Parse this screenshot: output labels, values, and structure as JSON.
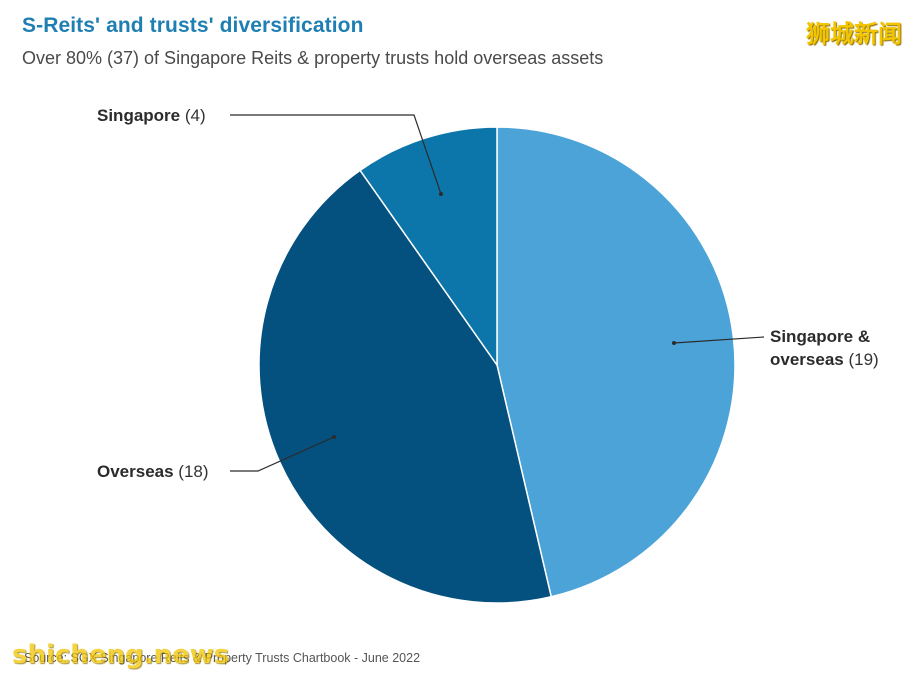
{
  "header": {
    "title": "S-Reits' and trusts' diversification",
    "subtitle": "Over 80% (37) of Singapore Reits & property trusts hold overseas assets"
  },
  "brand_watermark": "狮城新闻",
  "footer": {
    "source": "Source: SGX Singapore Reits & Property Trusts Chartbook - June 2022",
    "watermark": "shicheng.news"
  },
  "chart_data": {
    "type": "pie",
    "title": "S-Reits' and trusts' diversification",
    "subtitle": "Over 80% (37) of Singapore Reits & property trusts hold overseas assets",
    "slices": [
      {
        "label": "Singapore & overseas",
        "name_lines": [
          "Singapore &",
          "overseas"
        ],
        "value": 19,
        "value_text": "(19)",
        "color": "#4ba3d8"
      },
      {
        "label": "Overseas",
        "name_lines": [
          "Overseas"
        ],
        "value": 18,
        "value_text": "(18)",
        "color": "#04507f"
      },
      {
        "label": "Singapore",
        "name_lines": [
          "Singapore"
        ],
        "value": 4,
        "value_text": "(4)",
        "color": "#0c76aa"
      }
    ],
    "start_angle": "12 o'clock",
    "direction": "clockwise"
  }
}
